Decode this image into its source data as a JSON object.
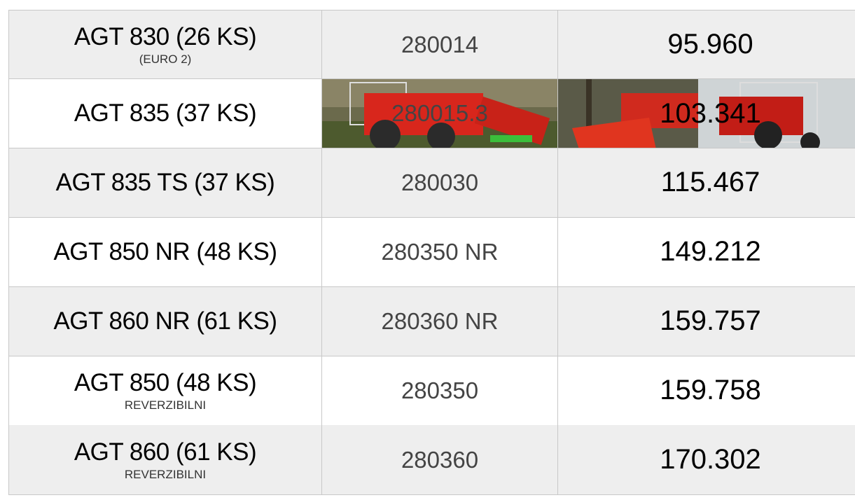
{
  "table": {
    "rows": [
      {
        "name": "AGT 830 (26 KS)",
        "note": "(EURO 2)",
        "code": "280014",
        "price": "95.960"
      },
      {
        "name": "AGT 835 (37 KS)",
        "code": "280015.3",
        "price": "103.341"
      },
      {
        "name": "AGT 835 TS (37 KS)",
        "code": "280030",
        "price": "115.467"
      },
      {
        "name": "AGT 850 NR (48 KS)",
        "code": "280350 NR",
        "price": "149.212"
      },
      {
        "name": "AGT 860 NR (61 KS)",
        "code": "280360 NR",
        "price": "159.757"
      },
      {
        "name": "AGT 850 (48 KS)",
        "note": "REVERZIBILNI",
        "code": "280350",
        "price": "159.758"
      },
      {
        "name": "AGT 860 (61 KS)",
        "note": "REVERZIBILNI",
        "code": "280360",
        "price": "170.302"
      }
    ]
  }
}
